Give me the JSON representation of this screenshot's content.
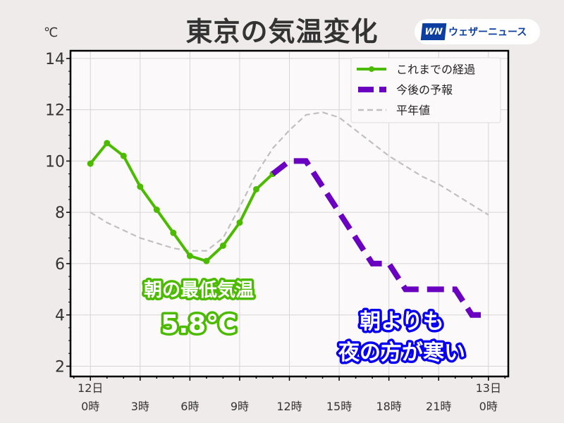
{
  "title": "東京の気温変化",
  "unit": "℃",
  "logo": {
    "mark": "WN",
    "text": "ウェザーニュース"
  },
  "annotations": {
    "low_label": "朝の最低気温",
    "low_value": "5.8℃",
    "note_line1": "朝よりも",
    "note_line2": "夜の方が寒い"
  },
  "colors": {
    "observed": "#4cbb00",
    "forecast": "#6a00c0",
    "normal": "#c0c0c0",
    "low_annot": "#4cbb00",
    "note_annot": "#0a00f0"
  },
  "chart_data": {
    "type": "line",
    "title": "東京の気温変化",
    "ylabel": "℃",
    "ylim": [
      1.6,
      14.3
    ],
    "xlim": [
      -1.2,
      25.2
    ],
    "yticks": [
      2,
      4,
      6,
      8,
      10,
      12,
      14
    ],
    "xticks": [
      {
        "x": 0,
        "line1": "12日",
        "line2": "0時"
      },
      {
        "x": 3,
        "line2": "3時"
      },
      {
        "x": 6,
        "line2": "6時"
      },
      {
        "x": 9,
        "line2": "9時"
      },
      {
        "x": 12,
        "line2": "12時"
      },
      {
        "x": 15,
        "line2": "15時"
      },
      {
        "x": 18,
        "line2": "18時"
      },
      {
        "x": 21,
        "line2": "21時"
      },
      {
        "x": 24,
        "line1": "13日",
        "line2": "0時"
      }
    ],
    "grid": true,
    "legend_position": "top-right",
    "series": [
      {
        "name": "これまでの経過",
        "style": "solid-markers",
        "x": [
          0,
          1,
          2,
          3,
          4,
          5,
          6,
          7,
          8,
          9,
          10,
          11
        ],
        "y": [
          9.9,
          10.7,
          10.2,
          9.0,
          8.1,
          7.2,
          6.3,
          6.1,
          6.7,
          7.6,
          8.9,
          9.5
        ]
      },
      {
        "name": "今後の予報",
        "style": "thick-dashed",
        "x": [
          11,
          12,
          13,
          17,
          18,
          19,
          22,
          23,
          24
        ],
        "y": [
          9.5,
          10,
          10,
          6,
          6,
          5,
          5,
          4,
          4
        ]
      },
      {
        "name": "平年値",
        "style": "dashed",
        "x": [
          0,
          1,
          2,
          3,
          4,
          5,
          6,
          7,
          8,
          9,
          10,
          11,
          12,
          13,
          14,
          15,
          16,
          17,
          18,
          19,
          20,
          21,
          22,
          23,
          24
        ],
        "y": [
          8.0,
          7.6,
          7.3,
          7.0,
          6.8,
          6.6,
          6.5,
          6.5,
          7.0,
          8.2,
          9.5,
          10.5,
          11.2,
          11.8,
          11.9,
          11.7,
          11.2,
          10.7,
          10.2,
          9.8,
          9.4,
          9.1,
          8.7,
          8.3,
          7.9
        ]
      }
    ]
  }
}
